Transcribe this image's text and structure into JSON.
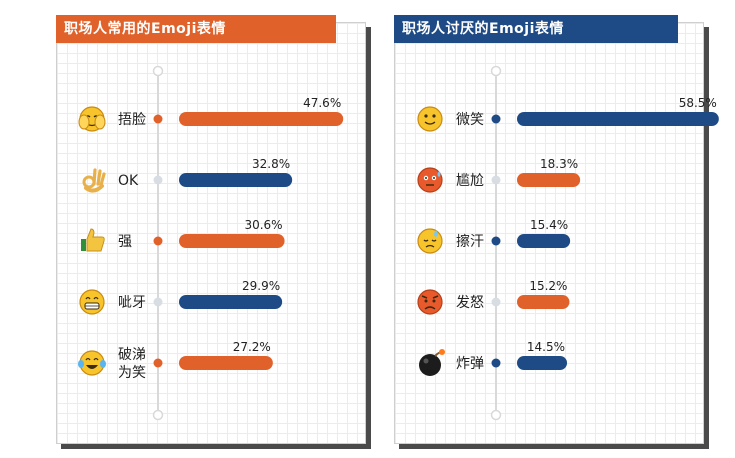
{
  "colors": {
    "orange": "#e0622a",
    "navy": "#1e4b86",
    "grey_dot": "#d8dde3",
    "axis": "#d9d9d9",
    "text": "#222222"
  },
  "chart_data": [
    {
      "type": "bar",
      "orientation": "horizontal",
      "title": "职场人常用的Emoji表情",
      "xlim": [
        0,
        60
      ],
      "categories": [
        "捂脸",
        "OK",
        "强",
        "呲牙",
        "破涕为笑"
      ],
      "category_lines": [
        [
          "捂脸"
        ],
        [
          "OK"
        ],
        [
          "强"
        ],
        [
          "呲牙"
        ],
        [
          "破涕",
          "为笑"
        ]
      ],
      "icons": [
        "facepalm-icon",
        "ok-hand-icon",
        "thumbs-up-icon",
        "grin-icon",
        "tears-of-joy-icon"
      ],
      "values": [
        47.6,
        32.8,
        30.6,
        29.9,
        27.2
      ],
      "value_labels": [
        "47.6%",
        "32.8%",
        "30.6%",
        "29.9%",
        "27.2%"
      ],
      "bar_colors": [
        "orange",
        "navy",
        "orange",
        "navy",
        "orange"
      ]
    },
    {
      "type": "bar",
      "orientation": "horizontal",
      "title": "职场人讨厌的Emoji表情",
      "xlim": [
        0,
        60
      ],
      "categories": [
        "微笑",
        "尴尬",
        "擦汗",
        "发怒",
        "炸弹"
      ],
      "category_lines": [
        [
          "微笑"
        ],
        [
          "尴尬"
        ],
        [
          "擦汗"
        ],
        [
          "发怒"
        ],
        [
          "炸弹"
        ]
      ],
      "icons": [
        "smile-icon",
        "awkward-icon",
        "sweat-icon",
        "angry-icon",
        "bomb-icon"
      ],
      "values": [
        58.5,
        18.3,
        15.4,
        15.2,
        14.5
      ],
      "value_labels": [
        "58.5%",
        "18.3%",
        "15.4%",
        "15.2%",
        "14.5%"
      ],
      "bar_colors": [
        "navy",
        "orange",
        "navy",
        "orange",
        "navy"
      ]
    }
  ]
}
